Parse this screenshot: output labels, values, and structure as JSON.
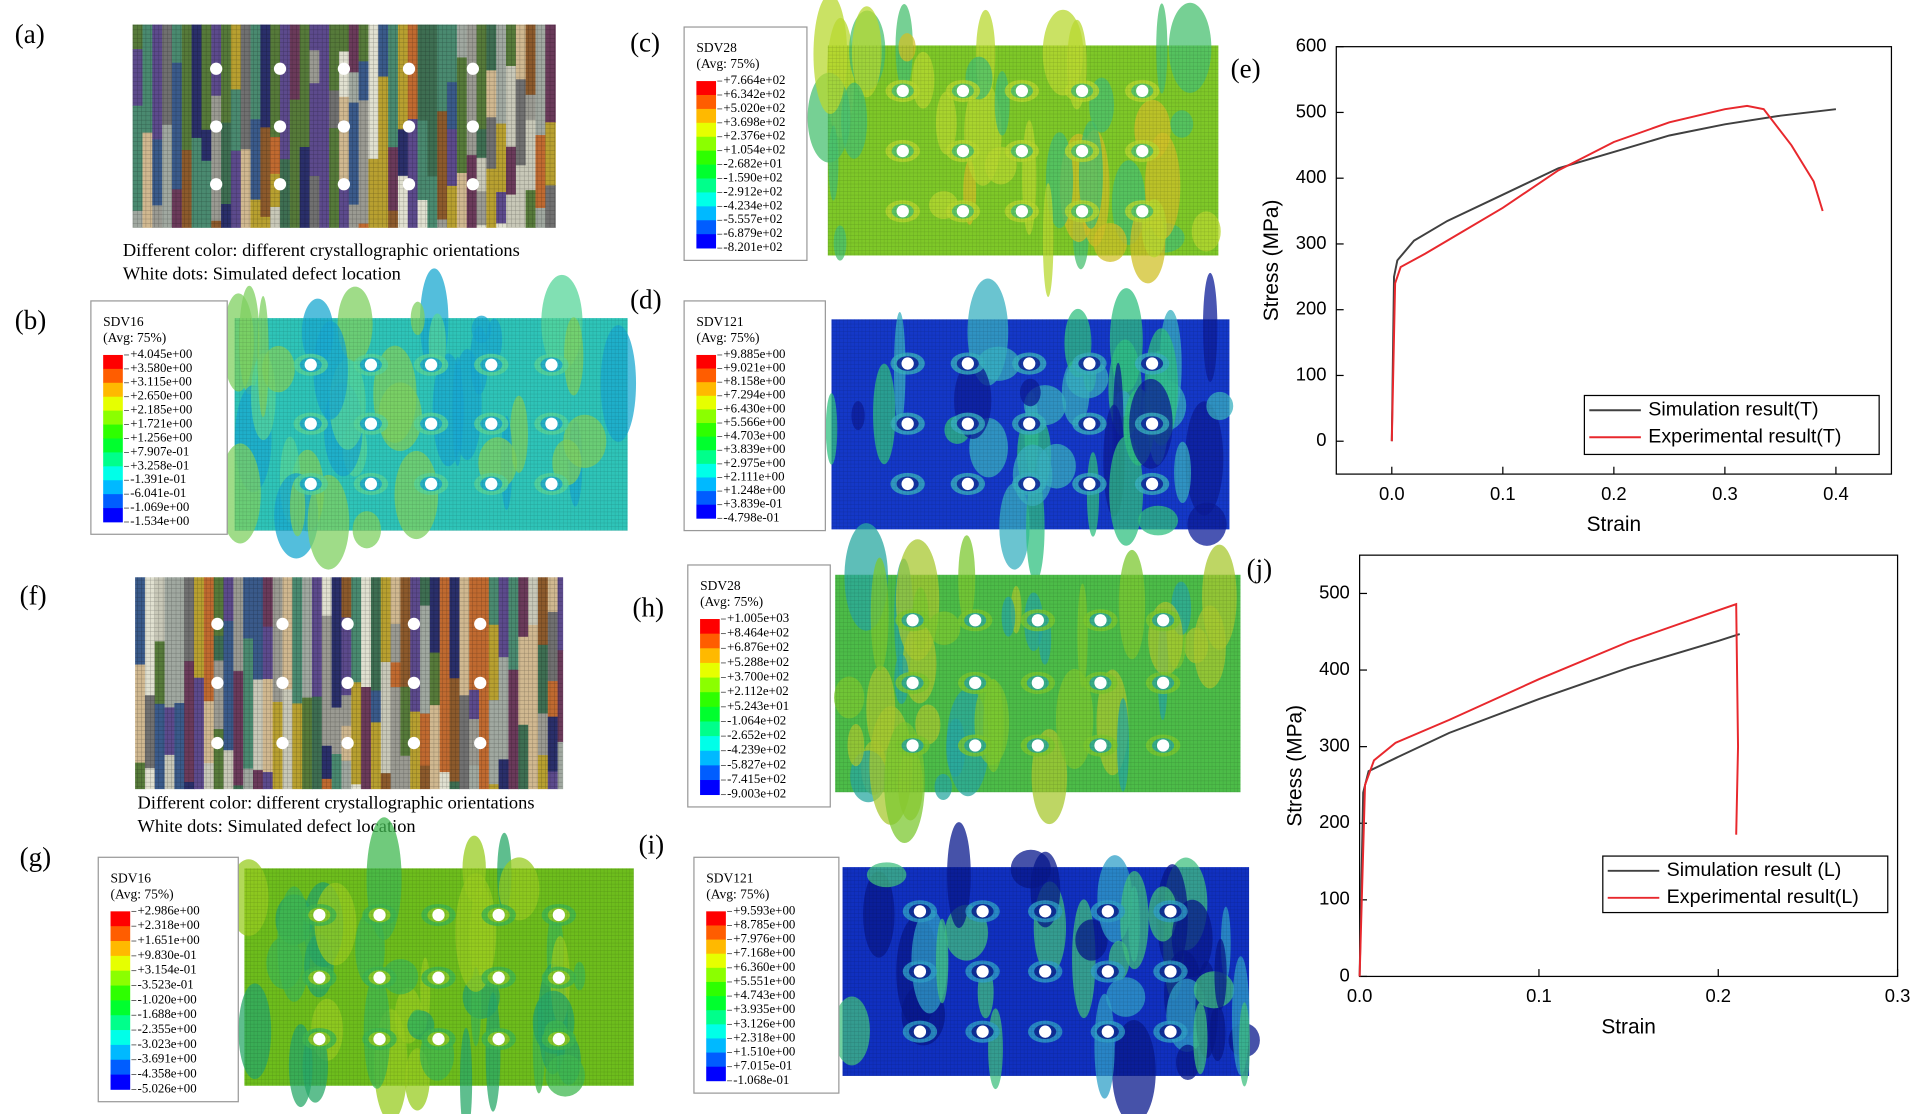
{
  "panels": {
    "a": {
      "label": "(a)",
      "caption": [
        "Different color: different crystallographic orientations",
        "White dots: Simulated defect location"
      ]
    },
    "b": {
      "label": "(b)",
      "legend_title": "SDV16",
      "legend_subtitle": "(Avg: 75%)",
      "legend_labels": [
        "+4.045e+00",
        "+3.580e+00",
        "+3.115e+00",
        "+2.650e+00",
        "+2.185e+00",
        "+1.721e+00",
        "+1.256e+00",
        "+7.907e-01",
        "+3.258e-01",
        "-1.391e-01",
        "-6.041e-01",
        "-1.069e+00",
        "-1.534e+00"
      ]
    },
    "c": {
      "label": "(c)",
      "legend_title": "SDV28",
      "legend_subtitle": "(Avg: 75%)",
      "legend_labels": [
        "+7.664e+02",
        "+6.342e+02",
        "+5.020e+02",
        "+3.698e+02",
        "+2.376e+02",
        "+1.054e+02",
        "-2.682e+01",
        "-1.590e+02",
        "-2.912e+02",
        "-4.234e+02",
        "-5.557e+02",
        "-6.879e+02",
        "-8.201e+02"
      ]
    },
    "d": {
      "label": "(d)",
      "legend_title": "SDV121",
      "legend_subtitle": "(Avg: 75%)",
      "legend_labels": [
        "+9.885e+00",
        "+9.021e+00",
        "+8.158e+00",
        "+7.294e+00",
        "+6.430e+00",
        "+5.566e+00",
        "+4.703e+00",
        "+3.839e+00",
        "+2.975e+00",
        "+2.111e+00",
        "+1.248e+00",
        "+3.839e-01",
        "-4.798e-01"
      ]
    },
    "f": {
      "label": "(f)",
      "caption": [
        "Different color: different crystallographic orientations",
        "White dots: Simulated defect location"
      ]
    },
    "g": {
      "label": "(g)",
      "legend_title": "SDV16",
      "legend_subtitle": "(Avg: 75%)",
      "legend_labels": [
        "+2.986e+00",
        "+2.318e+00",
        "+1.651e+00",
        "+9.830e-01",
        "+3.154e-01",
        "-3.523e-01",
        "-1.020e+00",
        "-1.688e+00",
        "-2.355e+00",
        "-3.023e+00",
        "-3.691e+00",
        "-4.358e+00",
        "-5.026e+00"
      ]
    },
    "h": {
      "label": "(h)",
      "legend_title": "SDV28",
      "legend_subtitle": "(Avg: 75%)",
      "legend_labels": [
        "+1.005e+03",
        "+8.464e+02",
        "+6.876e+02",
        "+5.288e+02",
        "+3.700e+02",
        "+2.112e+02",
        "+5.243e+01",
        "-1.064e+02",
        "-2.652e+02",
        "-4.239e+02",
        "-5.827e+02",
        "-7.415e+02",
        "-9.003e+02"
      ]
    },
    "i": {
      "label": "(i)",
      "legend_title": "SDV121",
      "legend_subtitle": "(Avg: 75%)",
      "legend_labels": [
        "+9.593e+00",
        "+8.785e+00",
        "+7.976e+00",
        "+7.168e+00",
        "+6.360e+00",
        "+5.551e+00",
        "+4.743e+00",
        "+3.935e+00",
        "+3.126e+00",
        "+2.318e+00",
        "+1.510e+00",
        "+7.015e-01",
        "-1.068e-01"
      ]
    }
  },
  "chart_data": [
    {
      "type": "line",
      "panel_label": "(e)",
      "x_label": "Strain",
      "y_label": "Stress (MPa)",
      "xlim": [
        -0.05,
        0.45
      ],
      "ylim": [
        -50,
        600
      ],
      "xticks": [
        {
          "value": 0,
          "label": "0.0"
        },
        0.1,
        0.2,
        0.3,
        0.4
      ],
      "yticks": [
        0,
        100,
        200,
        300,
        400,
        500,
        600
      ],
      "legend": "lower right",
      "grid": false,
      "series": [
        {
          "name": "Simulation result(T)",
          "color": "#404040",
          "x": [
            0,
            0.002,
            0.005,
            0.02,
            0.05,
            0.1,
            0.15,
            0.2,
            0.25,
            0.3,
            0.35,
            0.4
          ],
          "values": [
            0,
            250,
            275,
            305,
            335,
            375,
            415,
            440,
            465,
            482,
            495,
            505
          ]
        },
        {
          "name": "Experimental result(T)",
          "color": "#e8282d",
          "x": [
            0,
            0.003,
            0.008,
            0.03,
            0.05,
            0.1,
            0.15,
            0.2,
            0.25,
            0.3,
            0.32,
            0.335,
            0.36,
            0.38,
            0.388
          ],
          "values": [
            0,
            240,
            265,
            285,
            305,
            355,
            412,
            455,
            485,
            505,
            510,
            505,
            450,
            395,
            350
          ]
        }
      ]
    },
    {
      "type": "line",
      "panel_label": "(j)",
      "x_label": "Strain",
      "y_label": "Stress (MPa)",
      "xlim": [
        0,
        0.3
      ],
      "ylim": [
        0,
        550
      ],
      "xticks": [
        {
          "value": 0,
          "label": "0.0"
        },
        0.1,
        0.2,
        0.3
      ],
      "yticks": [
        0,
        100,
        200,
        300,
        400,
        500
      ],
      "legend": "lower right",
      "grid": false,
      "series": [
        {
          "name": "Simulation result (L)",
          "color": "#404040",
          "x": [
            0,
            0.002,
            0.005,
            0.02,
            0.05,
            0.1,
            0.15,
            0.2,
            0.212
          ],
          "values": [
            0,
            240,
            268,
            285,
            318,
            362,
            403,
            438,
            447
          ]
        },
        {
          "name": "Experimental result(L)",
          "color": "#e8282d",
          "x": [
            0,
            0.003,
            0.008,
            0.02,
            0.05,
            0.1,
            0.15,
            0.2,
            0.21,
            0.211,
            0.21
          ],
          "values": [
            0,
            250,
            282,
            305,
            335,
            388,
            437,
            478,
            486,
            300,
            185
          ]
        }
      ]
    }
  ]
}
